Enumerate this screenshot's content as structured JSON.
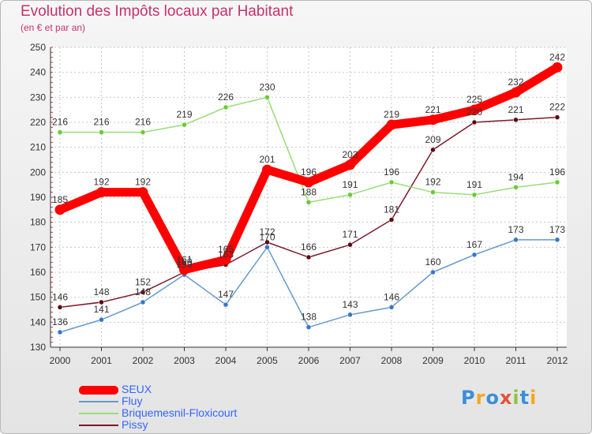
{
  "title": "Evolution des Impôts locaux par Habitant",
  "subtitle": "(en € et par an)",
  "logo_text": "Proxiti",
  "chart_data": {
    "type": "line",
    "title": "Evolution des Impôts locaux par Habitant",
    "subtitle": "(en € et par an)",
    "xlabel": "",
    "ylabel": "",
    "ylim": [
      130,
      250
    ],
    "yticks": [
      "130",
      "140",
      "150",
      "160",
      "170",
      "180",
      "190",
      "200",
      "210",
      "220",
      "230",
      "240",
      "250"
    ],
    "categories": [
      "2000",
      "2001",
      "2002",
      "2003",
      "2004",
      "2005",
      "2006",
      "2007",
      "2008",
      "2009",
      "2010",
      "2011",
      "2012"
    ],
    "grid": true,
    "legend_position": "bottom-left",
    "series": [
      {
        "name": "Pissy",
        "color": "#7a1a2a",
        "dot": "#5a0a14",
        "values": [
          146,
          148,
          152,
          160,
          163,
          172,
          166,
          171,
          181,
          209,
          220,
          221,
          222
        ],
        "labels": [
          "146",
          "148",
          "152",
          "160",
          "163",
          "172",
          "166",
          "171",
          "181",
          "209",
          "220",
          "221",
          "222"
        ]
      },
      {
        "name": "Briquemesnil-Floxicourt",
        "color": "#99dd77",
        "dot": "#66cc33",
        "values": [
          216,
          216,
          216,
          219,
          226,
          230,
          188,
          191,
          196,
          192,
          191,
          194,
          196
        ],
        "labels": [
          "216",
          "216",
          "216",
          "219",
          "226",
          "230",
          "188",
          "191",
          "196",
          "192",
          "191",
          "194",
          "196"
        ]
      },
      {
        "name": "Fluy",
        "color": "#6699cc",
        "dot": "#3377cc",
        "values": [
          136,
          141,
          148,
          159,
          147,
          170,
          138,
          143,
          146,
          160,
          167,
          173,
          173
        ],
        "labels": [
          "136",
          "141",
          "148",
          "159",
          "147",
          "170",
          "138",
          "143",
          "146",
          "160",
          "167",
          "173",
          "173"
        ]
      },
      {
        "name": "SEUX",
        "color": "#ff0000",
        "dot": "#ff0000",
        "values": [
          185,
          192,
          192,
          161,
          165,
          201,
          196,
          203,
          219,
          221,
          225,
          232,
          242
        ],
        "labels": [
          "185",
          "192",
          "192",
          "161",
          "165",
          "201",
          "196",
          "203",
          "219",
          "221",
          "225",
          "232",
          "242"
        ]
      }
    ],
    "legend": [
      "SEUX",
      "Fluy",
      "Briquemesnil-Floxicourt",
      "Pissy"
    ]
  },
  "legend_items": [
    {
      "label": "SEUX",
      "color": "#ff0000",
      "thickness": 11
    },
    {
      "label": "Fluy",
      "color": "#6699cc",
      "thickness": 2
    },
    {
      "label": "Briquemesnil-Floxicourt",
      "color": "#99dd77",
      "thickness": 2
    },
    {
      "label": "Pissy",
      "color": "#7a1a2a",
      "thickness": 2
    }
  ]
}
